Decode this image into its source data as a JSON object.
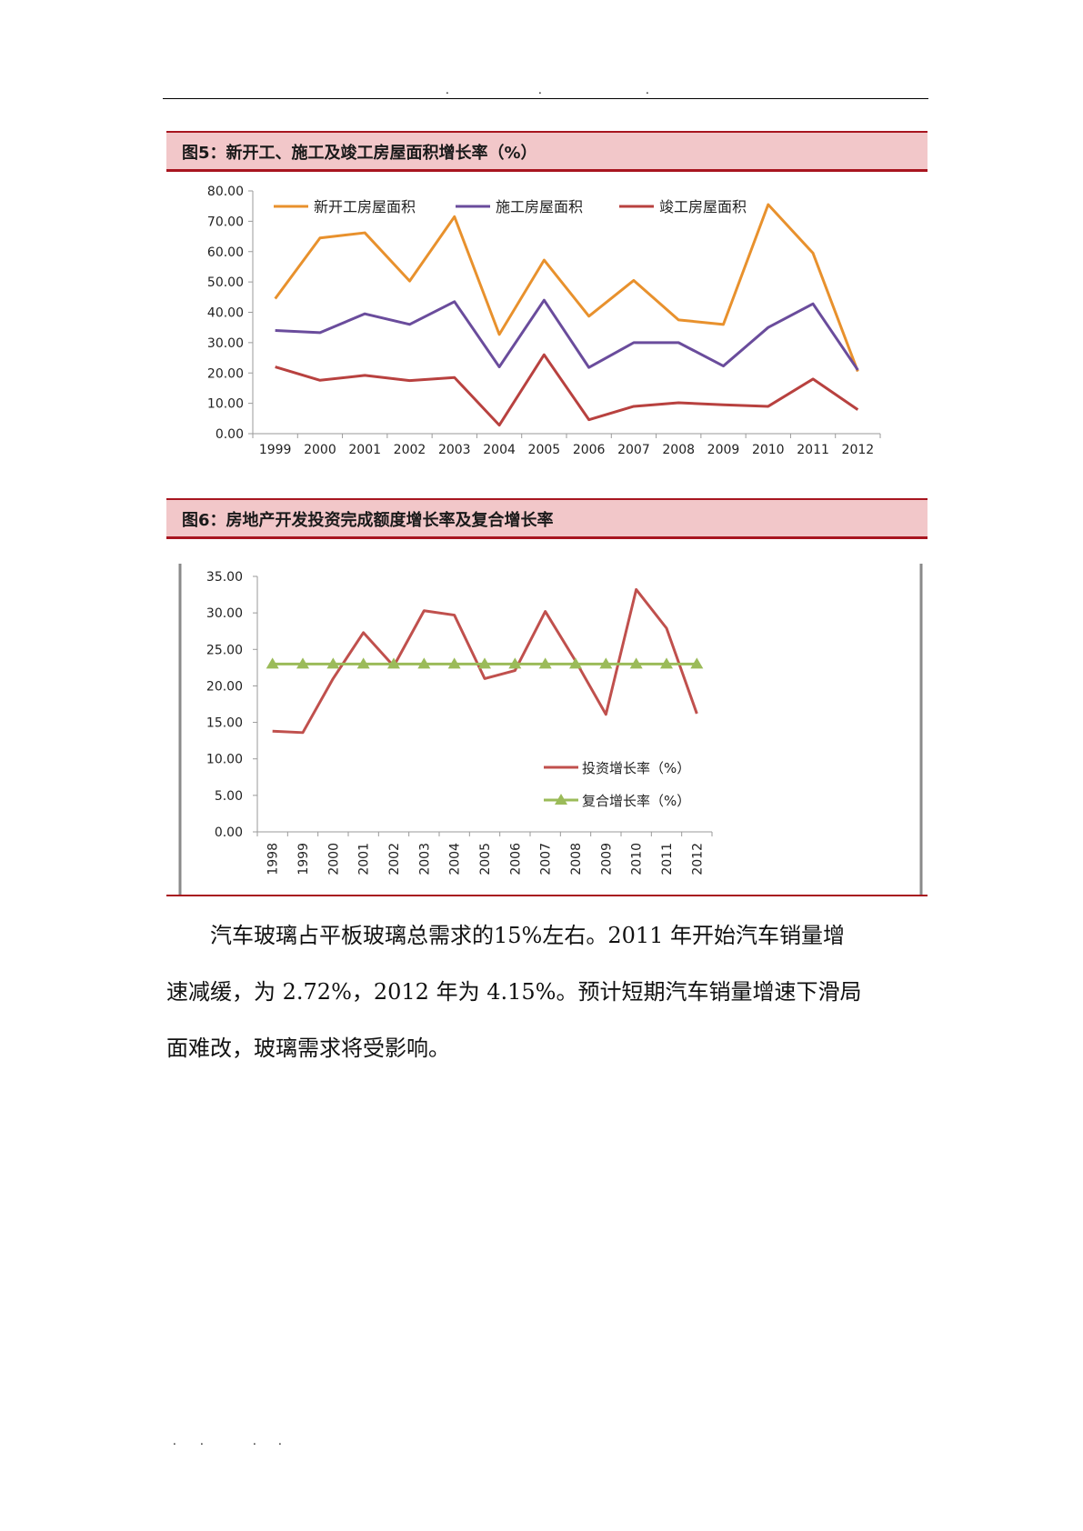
{
  "header": {
    "dots": [
      ".",
      ".",
      "."
    ]
  },
  "figure5": {
    "title": "图5：新开工、施工及竣工房屋面积增长率（%）"
  },
  "figure6": {
    "title": "图6：房地产开发投资完成额度增长率及复合增长率"
  },
  "paragraph": {
    "line1": "汽车玻璃占平板玻璃总需求的15%左右。2011 年开始汽车销量增",
    "line2": "速减缓，为 2.72%，2012 年为 4.15%。预计短期汽车销量增速下滑局",
    "line3": "面难改，玻璃需求将受影响。"
  },
  "footer": {
    "dots": [
      ".",
      ".",
      ".",
      "."
    ]
  },
  "chart_data": [
    {
      "type": "line",
      "title": "图5：新开工、施工及竣工房屋面积增长率（%）",
      "x": [
        "1999",
        "2000",
        "2001",
        "2002",
        "2003",
        "2004",
        "2005",
        "2006",
        "2007",
        "2008",
        "2009",
        "2010",
        "2011",
        "2012"
      ],
      "ylim": [
        0,
        80
      ],
      "yticks": [
        "0.00",
        "10.00",
        "20.00",
        "30.00",
        "40.00",
        "50.00",
        "60.00",
        "70.00",
        "80.00"
      ],
      "grid": false,
      "legend": "top",
      "series": [
        {
          "name": "新开工房屋面积",
          "color": "#e8912d",
          "values": [
            44.5,
            64.5,
            66.2,
            50.3,
            71.5,
            32.7,
            57.2,
            38.7,
            50.5,
            37.5,
            36.0,
            75.5,
            59.5,
            20.5
          ]
        },
        {
          "name": "施工房屋面积",
          "color": "#6a4c9c",
          "values": [
            34.0,
            33.3,
            39.5,
            36.0,
            43.5,
            22.0,
            44.0,
            21.8,
            30.0,
            30.0,
            22.3,
            35.0,
            42.8,
            21.0
          ]
        },
        {
          "name": "竣工房屋面积",
          "color": "#b8413f",
          "values": [
            22.0,
            17.6,
            19.2,
            17.5,
            18.5,
            2.8,
            26.0,
            4.6,
            9.0,
            10.2,
            9.5,
            9.0,
            18.0,
            7.9
          ]
        }
      ]
    },
    {
      "type": "line",
      "title": "图6：房地产开发投资完成额度增长率及复合增长率",
      "x": [
        "1998",
        "1999",
        "2000",
        "2001",
        "2002",
        "2003",
        "2004",
        "2005",
        "2006",
        "2007",
        "2008",
        "2009",
        "2010",
        "2011",
        "2012"
      ],
      "ylim": [
        0,
        35
      ],
      "yticks": [
        "0.00",
        "5.00",
        "10.00",
        "15.00",
        "20.00",
        "25.00",
        "30.00",
        "35.00"
      ],
      "grid": false,
      "legend": "inside-bottom-right",
      "series": [
        {
          "name": "投资增长率（%）",
          "color": "#c0504d",
          "values": [
            13.8,
            13.6,
            21.0,
            27.3,
            22.7,
            30.3,
            29.7,
            21.0,
            22.1,
            30.2,
            23.4,
            16.1,
            33.2,
            27.9,
            16.2
          ]
        },
        {
          "name": "复合增长率（%）",
          "color": "#9bbb59",
          "marker": "triangle",
          "values": [
            23.0,
            23.0,
            23.0,
            23.0,
            23.0,
            23.0,
            23.0,
            23.0,
            23.0,
            23.0,
            23.0,
            23.0,
            23.0,
            23.0,
            23.0
          ]
        }
      ]
    }
  ]
}
